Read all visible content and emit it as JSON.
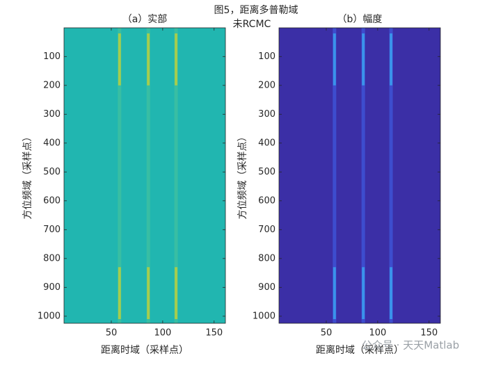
{
  "figure_title": "图5，距离多普勒域",
  "figure_subtitle": "未RCMC",
  "watermark": "公众号 · 天天Matlab",
  "chart_data": [
    {
      "type": "image",
      "title": "（a）实部",
      "xlabel": "距离时域（采样点）",
      "ylabel": "方位频域（采样点）",
      "xlim": [
        4,
        161
      ],
      "ylim": [
        0.5,
        1024.5
      ],
      "y_reversed": true,
      "xticks": [
        50,
        100,
        150
      ],
      "yticks": [
        100,
        200,
        300,
        400,
        500,
        600,
        700,
        800,
        900,
        1000
      ],
      "background": "#21b6b0",
      "stripe_color": "#3fc0a0",
      "highlight_color": "#b8d040",
      "columns": [
        58,
        86,
        113
      ],
      "row_ranges": [
        [
          20,
          200
        ],
        [
          830,
          1010
        ]
      ]
    },
    {
      "type": "image",
      "title": "（b）幅度",
      "xlabel": "距离时域（采样点）",
      "ylabel": "方位频域（采样点）",
      "xlim": [
        4,
        161
      ],
      "ylim": [
        0.5,
        1024.5
      ],
      "y_reversed": true,
      "xticks": [
        50,
        100,
        150
      ],
      "yticks": [
        100,
        200,
        300,
        400,
        500,
        600,
        700,
        800,
        900,
        1000
      ],
      "background": "#3b2fa6",
      "stripe_color": "#3f55d8",
      "highlight_color": "#3aa0f0",
      "columns": [
        58,
        86,
        113
      ],
      "row_ranges": [
        [
          20,
          200
        ],
        [
          830,
          1010
        ]
      ]
    }
  ]
}
